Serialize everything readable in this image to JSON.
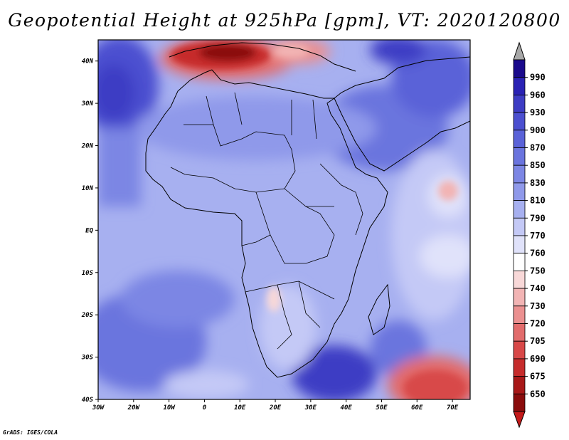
{
  "title": "Geopotential Height at 925hPa [gpm], VT: 2020120800",
  "credit": "GrADS: IGES/COLA",
  "map": {
    "lat_labels": [
      "40N",
      "30N",
      "20N",
      "10N",
      "EQ",
      "10S",
      "20S",
      "30S",
      "40S"
    ],
    "lon_labels": [
      "30W",
      "20W",
      "10W",
      "0",
      "10E",
      "20E",
      "30E",
      "40E",
      "50E",
      "60E",
      "70E"
    ],
    "lat_range": [
      -40,
      45
    ],
    "lon_range": [
      -30,
      75
    ]
  },
  "colorbar": {
    "labels": [
      "990",
      "960",
      "930",
      "900",
      "870",
      "850",
      "830",
      "810",
      "790",
      "770",
      "760",
      "750",
      "740",
      "730",
      "720",
      "705",
      "690",
      "675",
      "650"
    ],
    "colors": [
      "#1a0a8c",
      "#2a22b4",
      "#3d3cc4",
      "#4b4fd0",
      "#5a62d8",
      "#6a74de",
      "#7c86e4",
      "#8f99ea",
      "#a7b0f0",
      "#c4c9f6",
      "#e0e2fa",
      "#ffffff",
      "#f8d8d8",
      "#f2b4b4",
      "#eb9090",
      "#e26c6c",
      "#d84848",
      "#c62c2c",
      "#a81818",
      "#8a0c0c"
    ],
    "top_arrow_color": "#a8a8a8",
    "bottom_arrow_color": "#c41a1a"
  }
}
